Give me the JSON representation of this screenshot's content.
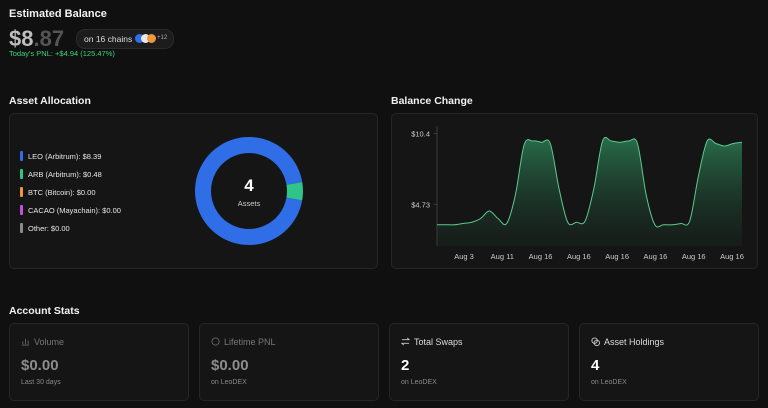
{
  "header": {
    "title": "Estimated Balance",
    "balance_main": "$8",
    "balance_cents": ".87",
    "chains": "on 16 chains",
    "chains_more": "+12",
    "pnl": "Today's PNL: +$4.94 (125.47%)"
  },
  "allocation": {
    "title": "Asset Allocation",
    "center_value": "4",
    "center_label": "Assets",
    "chart_data": {
      "type": "donut",
      "categories": [
        "LEO (Arbitrum): $8.39",
        "ARB (Arbitrum): $0.48",
        "BTC (Bitcoin): $0.00",
        "CACAO (Mayachain): $0.00",
        "Other: $0.00"
      ],
      "values": [
        8.39,
        0.48,
        0,
        0,
        0
      ],
      "colors": [
        "#2f6ee6",
        "#2fc48a",
        "#f0963a",
        "#c34fe0",
        "#8a8a8a"
      ]
    }
  },
  "balance": {
    "title": "Balance Change",
    "chart_data": {
      "type": "line",
      "color": "#5cc98e",
      "x_labels": [
        "Aug 3",
        "Aug 11",
        "Aug 16",
        "Aug 16",
        "Aug 16",
        "Aug 16",
        "Aug 16",
        "Aug 16"
      ],
      "values": [
        3.1,
        3.1,
        3.1,
        3.2,
        3.3,
        3.6,
        4.2,
        3.6,
        3.2,
        5.5,
        9.5,
        9.8,
        9.7,
        9.6,
        6,
        3.3,
        3.3,
        3.4,
        6,
        9.8,
        9.8,
        9.7,
        9.8,
        9.6,
        5.5,
        3.1,
        3.1,
        3.1,
        3.2,
        3.4,
        7,
        9.8,
        9.6,
        9.4,
        9.6,
        9.7
      ],
      "ylim": [
        1.4,
        11
      ],
      "yticks": [
        {
          "value": 4.73,
          "label": "$4.73"
        },
        {
          "value": 10.4,
          "label": "$10.4"
        }
      ]
    }
  },
  "stats": {
    "title": "Account Stats",
    "cards": [
      {
        "title": "Volume",
        "value": "$0.00",
        "sub": "Last 30 days"
      },
      {
        "title": "Lifetime PNL",
        "value": "$0.00",
        "sub": "on LeoDEX"
      },
      {
        "title": "Total Swaps",
        "value": "2",
        "sub": "on LeoDEX"
      },
      {
        "title": "Asset Holdings",
        "value": "4",
        "sub": "on LeoDEX"
      }
    ]
  }
}
